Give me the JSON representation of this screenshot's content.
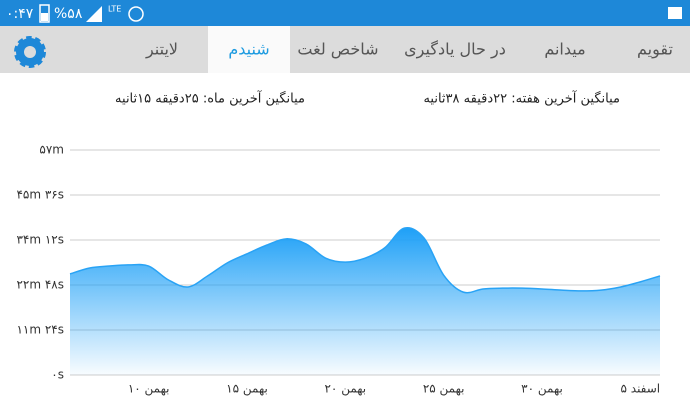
{
  "status_bar": {
    "time": "۰:۴۷",
    "battery": "%۵۸",
    "network": "LTE"
  },
  "tabs": [
    "لایتنر",
    "شنیدم",
    "شاخص لغت",
    "در حال یادگیری",
    "میدانم",
    "تقویم"
  ],
  "averages": {
    "month": "میانگین آخرین ماه: ۲۵دقیقه  ۱۵ثانیه",
    "week": "میانگین آخرین هفته: ۲۲دقیقه  ۳۸ثانیه"
  },
  "chart_data": {
    "type": "area",
    "color": "#29a3f5",
    "categories": [
      null,
      null,
      null,
      null,
      "۱۰ بهمن",
      null,
      null,
      null,
      null,
      "۱۵ بهمن",
      null,
      null,
      null,
      null,
      "۲۰ بهمن",
      null,
      null,
      null,
      null,
      "۲۵ بهمن",
      null,
      null,
      null,
      null,
      "۳۰ بهمن",
      null,
      null,
      null,
      null,
      "۵ اسفند",
      null
    ],
    "values": [
      25.6,
      27.1,
      27.6,
      27.9,
      27.6,
      24.1,
      22.3,
      25.1,
      28.4,
      30.7,
      32.9,
      34.5,
      33.2,
      29.6,
      28.6,
      29.6,
      32.2,
      37.2,
      34.7,
      25.3,
      21.0,
      21.8,
      22.0,
      22.0,
      21.8,
      21.5,
      21.3,
      21.5,
      22.3,
      23.6,
      25.1
    ],
    "ylim": [
      0,
      57
    ],
    "yticks": [
      {
        "value": 0,
        "label": "۰s"
      },
      {
        "value": 11.4,
        "label": "۱۱m ۲۴s"
      },
      {
        "value": 22.8,
        "label": "۲۲m ۴۸s"
      },
      {
        "value": 34.2,
        "label": "۳۴m ۱۲s"
      },
      {
        "value": 45.6,
        "label": "۴۵m ۳۶s"
      },
      {
        "value": 57,
        "label": "۵۷m"
      }
    ],
    "grid": true
  }
}
